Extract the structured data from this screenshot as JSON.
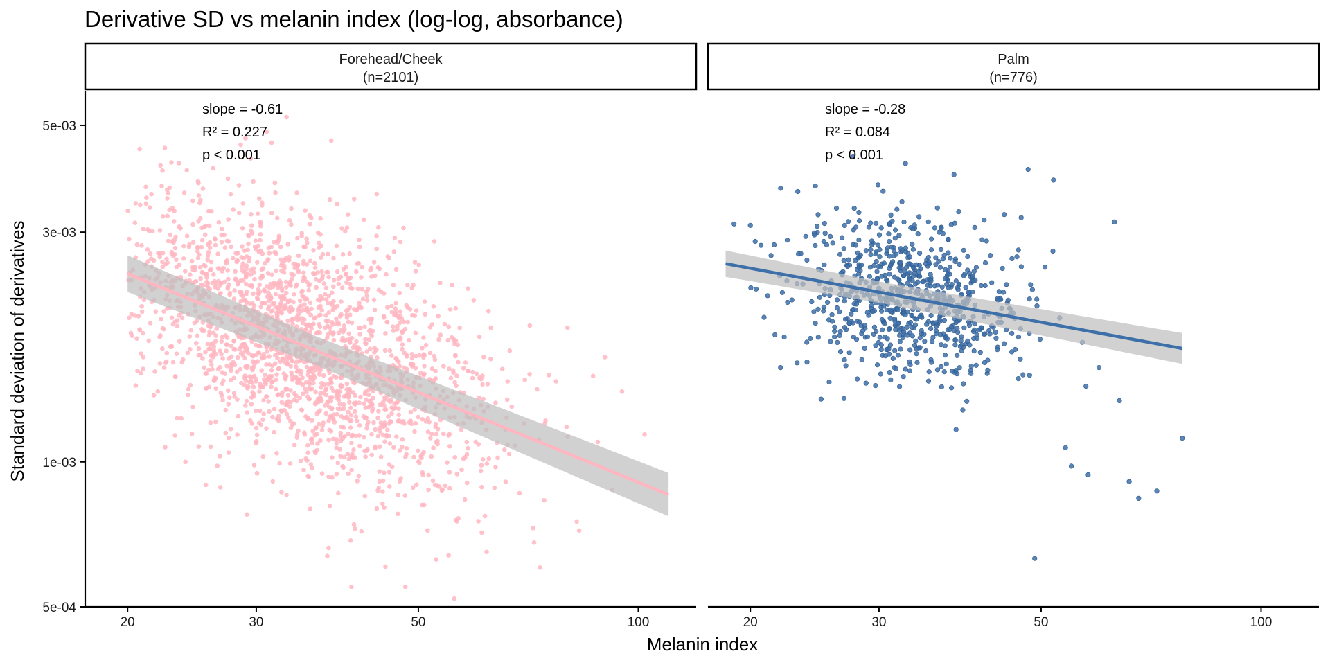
{
  "chart_data": {
    "type": "scatter",
    "title": "Derivative SD vs melanin index (log-log, absorbance)",
    "xlabel": "Melanin index",
    "ylabel": "Standard deviation of derivatives",
    "x_scale": "log",
    "y_scale": "log",
    "xlim": [
      17.5,
      120
    ],
    "ylim": [
      0.0005,
      0.0059
    ],
    "x_ticks": [
      20,
      30,
      50,
      100
    ],
    "x_tick_labels": [
      "20",
      "30",
      "50",
      "100"
    ],
    "y_ticks": [
      0.0005,
      0.001,
      0.003,
      0.005
    ],
    "y_tick_labels": [
      "5e-04",
      "1e-03",
      "3e-03",
      "5e-03"
    ],
    "grid": false,
    "panels": [
      {
        "strip": [
          "Forehead/Cheek",
          "(n=2101)"
        ],
        "color": "#ffb6c1",
        "band_color": "#bfbfbf",
        "n": 2101,
        "fit": {
          "slope": -0.61,
          "x": [
            20,
            110
          ],
          "y": [
            0.00246,
            0.000855
          ],
          "band_half_width_log": [
            0.03,
            0.045
          ]
        },
        "annotation": [
          "slope = -0.61",
          "R² = 0.227",
          "p < 0.001"
        ],
        "cloud": {
          "log10_x_center": 1.54,
          "log10_x_sd": 0.13,
          "log10_x_range": [
            1.301,
            2.041
          ],
          "log10_y_center_at_20": -2.609,
          "log10_y_slope": -0.61,
          "log10_y_sd": 0.125
        },
        "points": [
          [
            33,
            0.0052
          ],
          [
            31,
            0.00485
          ],
          [
            29,
            0.0047
          ],
          [
            38,
            0.00465
          ],
          [
            102,
            0.00114
          ],
          [
            90,
            0.00165
          ],
          [
            80,
            0.0019
          ],
          [
            56,
            0.00052
          ],
          [
            55,
            0.00064
          ],
          [
            48,
            0.00055
          ],
          [
            95,
            0.0014
          ],
          [
            88,
            0.0011
          ],
          [
            62,
            0.00065
          ],
          [
            72,
            0.00068
          ],
          [
            83,
            0.00072
          ],
          [
            21,
            0.00185
          ],
          [
            22,
            0.0014
          ],
          [
            24,
            0.001
          ]
        ]
      },
      {
        "strip": [
          "Palm",
          "(n=776)"
        ],
        "color": "#3d6fa8",
        "band_color": "#bfbfbf",
        "n": 776,
        "fit": {
          "slope": -0.28,
          "x": [
            18.5,
            78
          ],
          "y": [
            0.00258,
            0.00172
          ],
          "band_half_width_log": [
            0.022,
            0.032
          ]
        },
        "annotation": [
          "slope = -0.28",
          "R² = 0.084",
          "p < 0.001"
        ],
        "cloud": {
          "log10_x_center": 1.52,
          "log10_x_sd": 0.075,
          "log10_x_range": [
            1.279,
            1.892
          ],
          "log10_y_center_at_20": -2.596,
          "log10_y_slope": -0.28,
          "log10_y_sd": 0.085
        },
        "points": [
          [
            48,
            0.00405
          ],
          [
            52,
            0.00385
          ],
          [
            38,
            0.00395
          ],
          [
            22,
            0.0037
          ],
          [
            49,
            0.00063
          ],
          [
            68,
            0.00084
          ],
          [
            72,
            0.00087
          ],
          [
            66,
            0.00091
          ],
          [
            58,
            0.00094
          ],
          [
            55,
            0.00098
          ],
          [
            54,
            0.00107
          ],
          [
            78,
            0.00112
          ],
          [
            64,
            0.00134
          ],
          [
            60,
            0.00157
          ],
          [
            63,
            0.00315
          ],
          [
            19,
            0.00312
          ],
          [
            20,
            0.0031
          ],
          [
            25,
            0.00135
          ],
          [
            22,
            0.00157
          ]
        ]
      }
    ]
  }
}
